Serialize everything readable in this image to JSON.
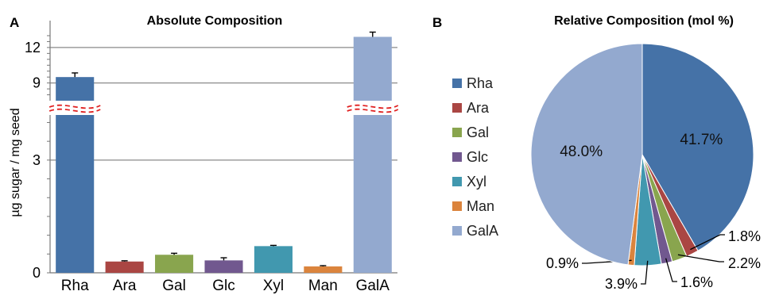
{
  "chart_data": [
    {
      "panel": "A",
      "type": "bar",
      "title": "Absolute Composition",
      "ylabel": "µg sugar / mg seed",
      "xlabel": "",
      "axis_break": true,
      "ylim_lower": [
        0,
        4.2
      ],
      "ylim_upper": [
        7.5,
        13.2
      ],
      "yticks": [
        0,
        3,
        9,
        12
      ],
      "grid": true,
      "categories": [
        "Rha",
        "Ara",
        "Gal",
        "Glc",
        "Xyl",
        "Man",
        "GalA"
      ],
      "values": [
        9.5,
        0.3,
        0.48,
        0.33,
        0.71,
        0.17,
        12.9
      ],
      "errors": [
        0.35,
        0.02,
        0.04,
        0.07,
        0.02,
        0.02,
        0.4
      ],
      "colors": [
        "#4572A7",
        "#AA4643",
        "#89A54E",
        "#71588F",
        "#4198AF",
        "#DB843D",
        "#93A9CF"
      ]
    },
    {
      "panel": "B",
      "type": "pie",
      "title": "Relative Composition (mol %)",
      "categories": [
        "Rha",
        "Ara",
        "Gal",
        "Glc",
        "Xyl",
        "Man",
        "GalA"
      ],
      "values": [
        41.7,
        1.8,
        2.2,
        1.6,
        3.9,
        0.9,
        48.0
      ],
      "labels": [
        "41.7%",
        "1.8%",
        "2.2%",
        "1.6%",
        "3.9%",
        "0.9%",
        "48.0%"
      ],
      "colors": [
        "#4572A7",
        "#AA4643",
        "#89A54E",
        "#71588F",
        "#4198AF",
        "#DB843D",
        "#93A9CF"
      ],
      "legend_position": "left"
    }
  ],
  "text": {
    "panel_a": "A",
    "panel_b": "B"
  }
}
